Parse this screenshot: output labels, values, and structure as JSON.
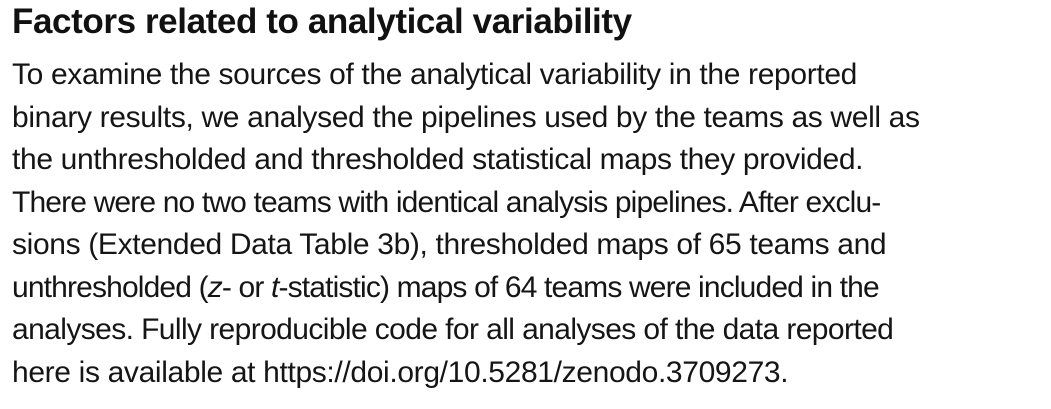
{
  "section": {
    "heading": "Factors related to analytical variability",
    "lines": [
      "To examine the sources of the analytical variability in the reported",
      "binary results, we analysed the pipelines used by the teams as well as",
      "the unthresholded and thresholded statistical maps they provided.",
      "There were no two teams with identical analysis pipelines. After exclu-",
      "sions (Extended Data Table 3b), thresholded maps of 65 teams and"
    ],
    "line6": {
      "pre": "unthresholded (",
      "z": "z",
      "mid1": "- or ",
      "t": "t",
      "post": "-statistic) maps of 64 teams were included in the"
    },
    "lines_end": [
      "analyses. Fully reproducible code for all analyses of the data reported",
      "here is available at https://doi.org/10.5281/zenodo.3709273."
    ]
  }
}
